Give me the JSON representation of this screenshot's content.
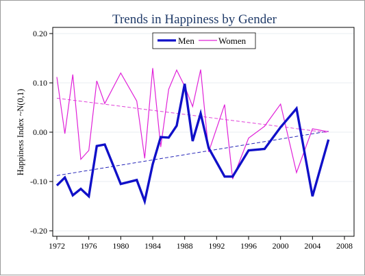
{
  "chart_data": {
    "type": "line",
    "title": "Trends in Happiness by Gender",
    "xlabel": "",
    "ylabel": "Happiness Index ~N(0,1)",
    "xlim": [
      1971.5,
      2009
    ],
    "ylim": [
      -0.22,
      0.22
    ],
    "xticks": [
      1972,
      1976,
      1980,
      1984,
      1988,
      1992,
      1996,
      2000,
      2004,
      2008
    ],
    "xtick_labels": [
      "1972",
      "1976",
      "1980",
      "1984",
      "1988",
      "1992",
      "1996",
      "2000",
      "2004",
      "2008"
    ],
    "yticks": [
      -0.2,
      -0.1,
      0.0,
      0.1,
      0.2
    ],
    "ytick_labels": [
      "-0.20",
      "-0.10",
      "0.00",
      "0.10",
      "0.20"
    ],
    "grid": "horizontal",
    "legend_position": "top-center",
    "series": [
      {
        "name": "Men",
        "color": "#1010c8",
        "x": [
          1972,
          1973,
          1974,
          1975,
          1976,
          1977,
          1978,
          1980,
          1982,
          1983,
          1984,
          1985,
          1986,
          1987,
          1988,
          1989,
          1990,
          1991,
          1993,
          1994,
          1996,
          1998,
          2000,
          2002,
          2004,
          2006
        ],
        "y": [
          -0.108,
          -0.092,
          -0.128,
          -0.115,
          -0.13,
          -0.028,
          -0.025,
          -0.105,
          -0.097,
          -0.14,
          -0.065,
          -0.01,
          -0.011,
          0.013,
          0.098,
          -0.018,
          0.038,
          -0.032,
          -0.09,
          -0.09,
          -0.037,
          -0.034,
          0.01,
          0.048,
          -0.13,
          -0.015
        ]
      },
      {
        "name": "Women",
        "color": "#e020d8",
        "x": [
          1972,
          1973,
          1974,
          1975,
          1976,
          1977,
          1978,
          1980,
          1982,
          1983,
          1984,
          1985,
          1986,
          1987,
          1988,
          1989,
          1990,
          1991,
          1993,
          1994,
          1996,
          1998,
          2000,
          2002,
          2004,
          2006
        ],
        "y": [
          0.112,
          -0.003,
          0.117,
          -0.055,
          -0.037,
          0.104,
          0.058,
          0.12,
          0.063,
          -0.053,
          0.13,
          -0.03,
          0.087,
          0.126,
          0.093,
          0.052,
          0.127,
          -0.04,
          0.056,
          -0.095,
          -0.012,
          0.012,
          0.057,
          -0.082,
          0.007,
          0.001
        ]
      }
    ],
    "trend_lines": [
      {
        "series": "Men",
        "style": "dashed",
        "color": "#2424b8",
        "x": [
          1972,
          2006
        ],
        "y": [
          -0.088,
          0.002
        ]
      },
      {
        "series": "Women",
        "style": "dashed",
        "color": "#e040d8",
        "x": [
          1972,
          2006
        ],
        "y": [
          0.069,
          -0.001
        ]
      }
    ],
    "colors": {
      "background": "#ffffff",
      "plot_border": "#000000",
      "grid": "#e8eef0",
      "title": "#1f3a68"
    }
  }
}
